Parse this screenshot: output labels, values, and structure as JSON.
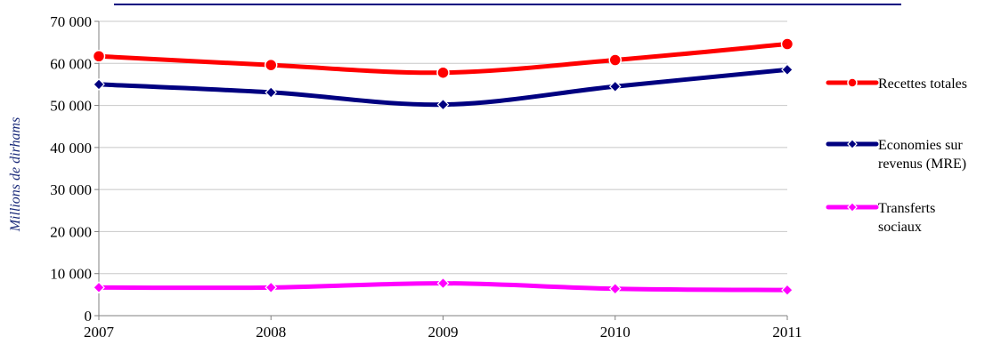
{
  "chart_data": {
    "type": "line",
    "ylabel": "Millions de dirhams",
    "xlabel": "",
    "title": "",
    "x": [
      2007,
      2008,
      2009,
      2010,
      2011
    ],
    "x_tick_labels": [
      "2007",
      "2008",
      "2009",
      "2010",
      "2011"
    ],
    "ylim": [
      0,
      70000
    ],
    "y_ticks": [
      0,
      10000,
      20000,
      30000,
      40000,
      50000,
      60000,
      70000
    ],
    "y_tick_labels": [
      "0",
      "10 000",
      "20 000",
      "30 000",
      "40 000",
      "50 000",
      "60 000",
      "70 000"
    ],
    "grid": "horizontal",
    "legend_position": "right",
    "series": [
      {
        "name_lines": [
          "Recettes totales"
        ],
        "values": [
          61700,
          59600,
          57800,
          60800,
          64600
        ],
        "color": "#ff0000",
        "marker": "circle"
      },
      {
        "name_lines": [
          "Economies sur",
          "revenus (MRE)"
        ],
        "values": [
          55000,
          53100,
          50200,
          54500,
          58500
        ],
        "color": "#000080",
        "marker": "diamond"
      },
      {
        "name_lines": [
          "Transferts",
          "sociaux"
        ],
        "values": [
          6700,
          6700,
          7700,
          6400,
          6100
        ],
        "color": "#ff00ff",
        "marker": "diamond"
      }
    ]
  }
}
